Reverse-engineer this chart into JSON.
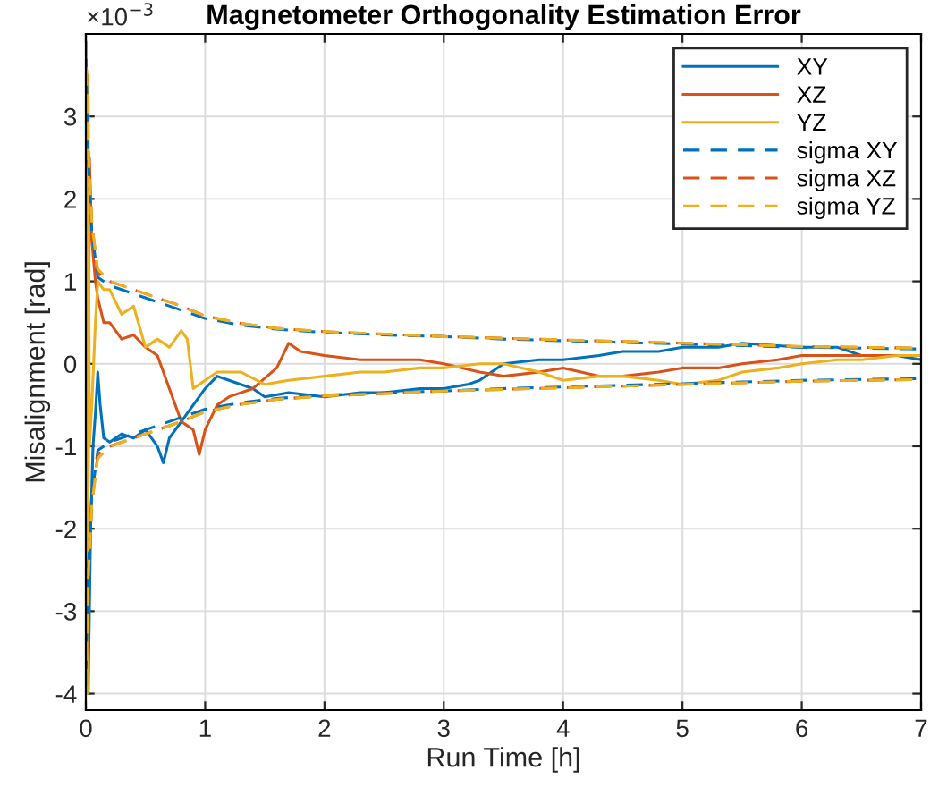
{
  "chart_data": {
    "type": "line",
    "title": "Magnetometer Orthogonality Estimation Error",
    "xlabel": "Run Time [h]",
    "ylabel": "Misalignment [rad]",
    "annotations": [
      "×10$^{−3}$"
    ],
    "xlim": [
      0,
      7
    ],
    "ylim": [
      -4.2,
      4.0
    ],
    "xticks": [
      0,
      1,
      2,
      3,
      4,
      5,
      6,
      7
    ],
    "yticks": [
      -4,
      -3,
      -2,
      -1,
      0,
      1,
      2,
      3
    ],
    "grid": true,
    "legend": "top right",
    "series": [
      {
        "name": "XY",
        "color": "#0072bd",
        "line_style": "solid",
        "x": [
          0,
          0.01,
          0.02,
          0.04,
          0.06,
          0.08,
          0.1,
          0.12,
          0.15,
          0.2,
          0.3,
          0.4,
          0.5,
          0.6,
          0.65,
          0.7,
          0.8,
          0.9,
          1.0,
          1.1,
          1.2,
          1.4,
          1.5,
          1.7,
          2.0,
          2.3,
          2.5,
          2.8,
          3.0,
          3.2,
          3.3,
          3.5,
          3.8,
          4.0,
          4.3,
          4.5,
          4.8,
          5.0,
          5.3,
          5.5,
          5.8,
          6.0,
          6.3,
          6.5,
          6.8,
          7.0
        ],
        "values": [
          0,
          -2.5,
          -4.0,
          -2.0,
          -1.0,
          -0.6,
          -0.1,
          -0.5,
          -0.9,
          -0.95,
          -0.85,
          -0.9,
          -0.8,
          -1.0,
          -1.2,
          -0.9,
          -0.7,
          -0.5,
          -0.3,
          -0.15,
          -0.2,
          -0.3,
          -0.4,
          -0.35,
          -0.4,
          -0.35,
          -0.35,
          -0.3,
          -0.3,
          -0.25,
          -0.2,
          0.0,
          0.05,
          0.05,
          0.1,
          0.15,
          0.15,
          0.2,
          0.2,
          0.25,
          0.22,
          0.2,
          0.2,
          0.1,
          0.1,
          0.05
        ]
      },
      {
        "name": "XZ",
        "color": "#d95319",
        "line_style": "solid",
        "x": [
          0,
          0.01,
          0.02,
          0.03,
          0.05,
          0.08,
          0.1,
          0.15,
          0.2,
          0.3,
          0.4,
          0.5,
          0.6,
          0.7,
          0.8,
          0.9,
          0.95,
          1.0,
          1.1,
          1.2,
          1.4,
          1.6,
          1.7,
          1.8,
          2.0,
          2.3,
          2.5,
          2.8,
          3.0,
          3.3,
          3.5,
          3.8,
          4.0,
          4.3,
          4.5,
          4.8,
          5.0,
          5.3,
          5.5,
          5.8,
          6.0,
          6.3,
          6.5,
          6.8,
          7.0
        ],
        "values": [
          3.9,
          1.0,
          -1.5,
          2.5,
          1.5,
          1.0,
          0.8,
          0.5,
          0.5,
          0.3,
          0.35,
          0.2,
          0.1,
          -0.3,
          -0.7,
          -0.8,
          -1.1,
          -0.8,
          -0.5,
          -0.4,
          -0.3,
          -0.05,
          0.25,
          0.15,
          0.1,
          0.05,
          0.05,
          0.05,
          0.0,
          -0.1,
          -0.15,
          -0.1,
          -0.05,
          -0.15,
          -0.15,
          -0.1,
          -0.05,
          -0.05,
          0.0,
          0.05,
          0.1,
          0.1,
          0.1,
          0.1,
          0.1
        ]
      },
      {
        "name": "YZ",
        "color": "#edb120",
        "line_style": "solid",
        "x": [
          0,
          0.01,
          0.02,
          0.03,
          0.05,
          0.08,
          0.1,
          0.15,
          0.2,
          0.3,
          0.4,
          0.5,
          0.6,
          0.7,
          0.8,
          0.85,
          0.9,
          1.0,
          1.1,
          1.3,
          1.5,
          1.7,
          2.0,
          2.3,
          2.5,
          2.8,
          3.0,
          3.3,
          3.5,
          3.8,
          4.0,
          4.3,
          4.5,
          4.8,
          5.0,
          5.3,
          5.5,
          5.8,
          6.0,
          6.3,
          6.5,
          6.8,
          7.0
        ],
        "values": [
          0,
          -4.0,
          3.5,
          -1.0,
          -0.5,
          0.5,
          1.0,
          0.9,
          0.9,
          0.6,
          0.7,
          0.2,
          0.3,
          0.2,
          0.4,
          0.3,
          -0.3,
          -0.2,
          -0.1,
          -0.1,
          -0.25,
          -0.2,
          -0.15,
          -0.1,
          -0.1,
          -0.05,
          -0.05,
          0.0,
          0.0,
          -0.1,
          -0.2,
          -0.15,
          -0.15,
          -0.2,
          -0.25,
          -0.2,
          -0.1,
          -0.05,
          0.0,
          0.05,
          0.05,
          0.1,
          0.1
        ]
      },
      {
        "name": "sigma XY",
        "color": "#0072bd",
        "line_style": "dashed",
        "x": [
          0,
          0.02,
          0.05,
          0.1,
          0.2,
          0.4,
          0.6,
          0.8,
          1.0,
          1.3,
          1.6,
          2.0,
          2.5,
          3.0,
          3.5,
          4.0,
          4.5,
          5.0,
          5.5,
          6.0,
          6.5,
          7.0
        ],
        "values": [
          3.8,
          2.5,
          1.6,
          1.05,
          0.95,
          0.85,
          0.75,
          0.65,
          0.55,
          0.47,
          0.42,
          0.38,
          0.35,
          0.33,
          0.3,
          0.28,
          0.26,
          0.24,
          0.22,
          0.2,
          0.19,
          0.18
        ]
      },
      {
        "color": "#0072bd",
        "line_style": "dashed",
        "x": [
          0,
          0.02,
          0.05,
          0.1,
          0.2,
          0.4,
          0.6,
          0.8,
          1.0,
          1.3,
          1.6,
          2.0,
          2.5,
          3.0,
          3.5,
          4.0,
          4.5,
          5.0,
          5.5,
          6.0,
          6.5,
          7.0
        ],
        "values": [
          -3.8,
          -2.5,
          -1.6,
          -1.05,
          -0.95,
          -0.85,
          -0.75,
          -0.65,
          -0.55,
          -0.47,
          -0.42,
          -0.38,
          -0.35,
          -0.33,
          -0.3,
          -0.28,
          -0.26,
          -0.24,
          -0.22,
          -0.2,
          -0.19,
          -0.18
        ]
      },
      {
        "name": "sigma XZ",
        "color": "#d95319",
        "line_style": "dashed",
        "x": [
          0,
          0.02,
          0.05,
          0.1,
          0.2,
          0.4,
          0.6,
          0.8,
          1.0,
          1.3,
          1.6,
          2.0,
          2.5,
          3.0,
          3.5,
          4.0,
          4.5,
          5.0,
          5.5,
          6.0,
          6.5,
          7.0
        ],
        "values": [
          3.9,
          2.6,
          1.7,
          1.1,
          1.0,
          0.9,
          0.8,
          0.7,
          0.58,
          0.49,
          0.43,
          0.39,
          0.36,
          0.33,
          0.31,
          0.29,
          0.27,
          0.25,
          0.23,
          0.21,
          0.2,
          0.19
        ]
      },
      {
        "color": "#d95319",
        "line_style": "dashed",
        "x": [
          0,
          0.02,
          0.05,
          0.1,
          0.2,
          0.4,
          0.6,
          0.8,
          1.0,
          1.3,
          1.6,
          2.0,
          2.5,
          3.0,
          3.5,
          4.0,
          4.5,
          5.0,
          5.5,
          6.0,
          6.5,
          7.0
        ],
        "values": [
          -3.9,
          -2.6,
          -1.7,
          -1.1,
          -1.0,
          -0.9,
          -0.8,
          -0.7,
          -0.58,
          -0.49,
          -0.43,
          -0.39,
          -0.36,
          -0.33,
          -0.31,
          -0.29,
          -0.27,
          -0.25,
          -0.23,
          -0.21,
          -0.2,
          -0.19
        ]
      },
      {
        "name": "sigma YZ",
        "color": "#edb120",
        "line_style": "dashed",
        "x": [
          0,
          0.02,
          0.05,
          0.1,
          0.2,
          0.4,
          0.6,
          0.8,
          1.0,
          1.3,
          1.6,
          2.0,
          2.5,
          3.0,
          3.5,
          4.0,
          4.5,
          5.0,
          5.5,
          6.0,
          6.5,
          7.0
        ],
        "values": [
          3.9,
          2.6,
          1.7,
          1.15,
          1.0,
          0.9,
          0.8,
          0.7,
          0.58,
          0.49,
          0.43,
          0.39,
          0.36,
          0.33,
          0.31,
          0.29,
          0.27,
          0.25,
          0.23,
          0.21,
          0.2,
          0.19
        ]
      },
      {
        "color": "#edb120",
        "line_style": "dashed",
        "x": [
          0,
          0.02,
          0.05,
          0.1,
          0.2,
          0.4,
          0.6,
          0.8,
          1.0,
          1.3,
          1.6,
          2.0,
          2.5,
          3.0,
          3.5,
          4.0,
          4.5,
          5.0,
          5.5,
          6.0,
          6.5,
          7.0
        ],
        "values": [
          -3.9,
          -2.6,
          -1.7,
          -1.15,
          -1.0,
          -0.9,
          -0.8,
          -0.7,
          -0.58,
          -0.49,
          -0.43,
          -0.39,
          -0.36,
          -0.33,
          -0.31,
          -0.29,
          -0.27,
          -0.25,
          -0.23,
          -0.21,
          -0.2,
          -0.19
        ]
      }
    ]
  }
}
